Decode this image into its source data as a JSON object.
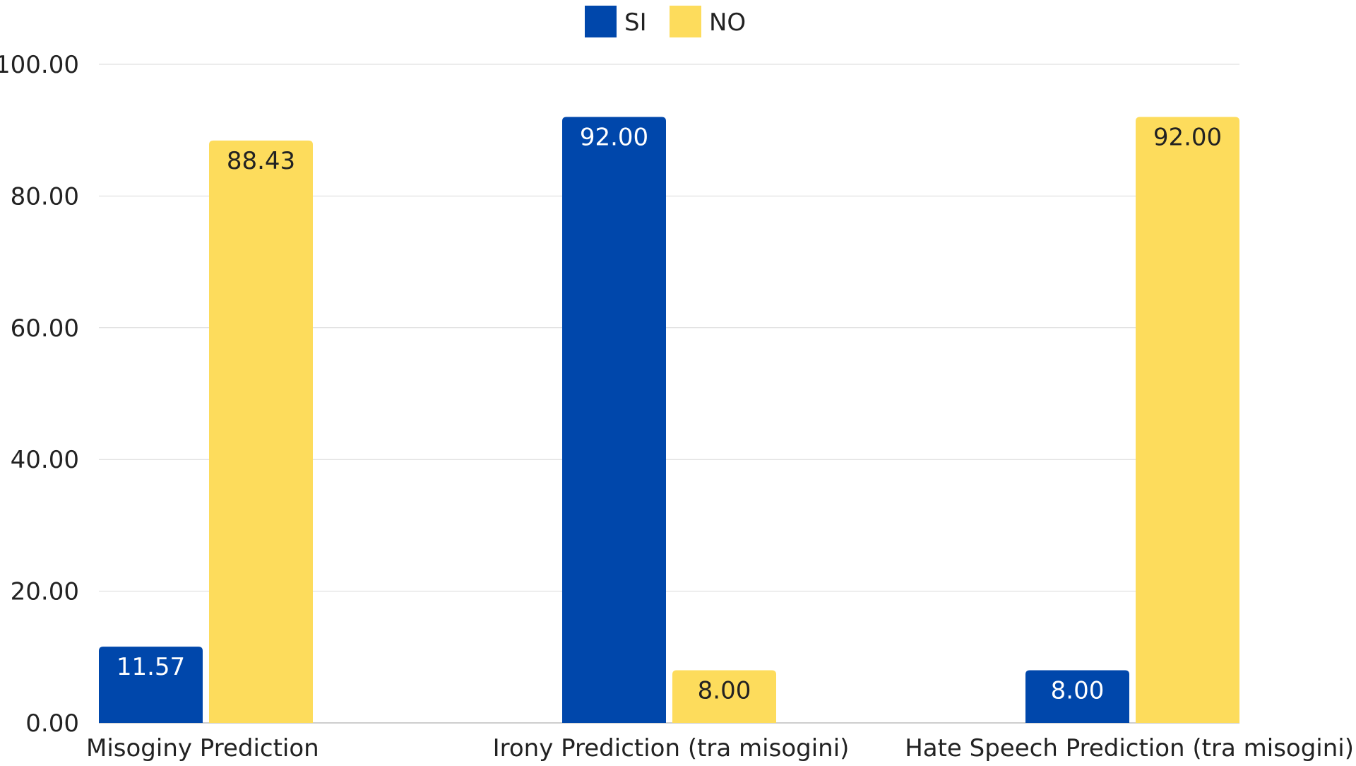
{
  "chart_data": {
    "type": "bar",
    "title": "",
    "xlabel": "",
    "ylabel": "",
    "categories": [
      "Misoginy Prediction",
      "Irony Prediction (tra misogini)",
      "Hate Speech Prediction (tra misogini)"
    ],
    "series": [
      {
        "name": "SI",
        "color": "#0047AB",
        "values": [
          11.57,
          92.0,
          8.0
        ],
        "labels": [
          "11.57",
          "92.00",
          "8.00"
        ]
      },
      {
        "name": "NO",
        "color": "#FDDC5C",
        "values": [
          88.43,
          8.0,
          92.0
        ],
        "labels": [
          "88.43",
          "8.00",
          "92.00"
        ]
      }
    ],
    "ylim": [
      0,
      100
    ],
    "yticks": [
      0,
      20,
      40,
      60,
      80,
      100
    ],
    "ytick_labels": [
      "0.00",
      "20.00",
      "40.00",
      "60.00",
      "80.00",
      "100.00"
    ],
    "grid": true,
    "legend_position": "top-center",
    "data_label_colors": {
      "SI": "#ffffff",
      "NO": "#222222"
    }
  }
}
